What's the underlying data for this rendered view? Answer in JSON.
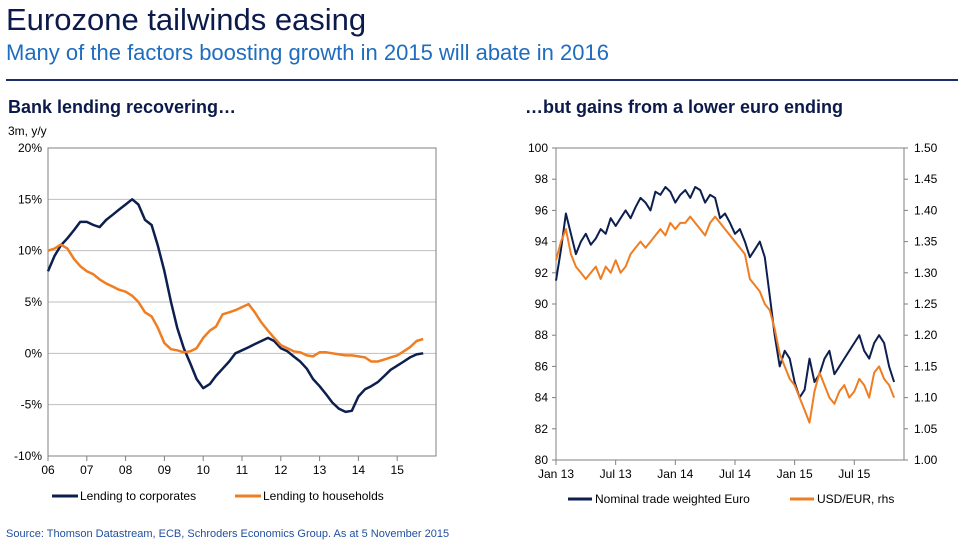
{
  "header": {
    "title": "Eurozone tailwinds easing",
    "subtitle": "Many of the factors boosting growth in 2015 will abate in 2016"
  },
  "footer": {
    "source": "Source: Thomson Datastream, ECB, Schroders Economics Group. As at 5 November 2015"
  },
  "colors": {
    "navy": "#0d1f4f",
    "orange": "#ef7d22",
    "grid": "#bfbfbf"
  },
  "chart_data": [
    {
      "type": "line",
      "title": "Bank lending recovering…",
      "unit_label": "3m, y/y",
      "ylim": [
        -10,
        20
      ],
      "yticks": [
        -10,
        -5,
        0,
        5,
        10,
        15,
        20
      ],
      "ytick_labels": [
        "-10%",
        "-5%",
        "0%",
        "5%",
        "10%",
        "15%",
        "20%"
      ],
      "xlim": [
        2006.0,
        2016.0
      ],
      "xticks": [
        2006,
        2007,
        2008,
        2009,
        2010,
        2011,
        2012,
        2013,
        2014,
        2015
      ],
      "xtick_labels": [
        "06",
        "07",
        "08",
        "09",
        "10",
        "11",
        "12",
        "13",
        "14",
        "15"
      ],
      "grid": true,
      "legend": "bottom",
      "series": [
        {
          "name": "Lending to corporates",
          "color": "#0d1f4f",
          "x": [
            2006.0,
            2006.17,
            2006.33,
            2006.5,
            2006.67,
            2006.83,
            2007.0,
            2007.17,
            2007.33,
            2007.5,
            2007.67,
            2007.83,
            2008.0,
            2008.17,
            2008.33,
            2008.5,
            2008.67,
            2008.83,
            2009.0,
            2009.17,
            2009.33,
            2009.5,
            2009.67,
            2009.83,
            2010.0,
            2010.17,
            2010.33,
            2010.5,
            2010.67,
            2010.83,
            2011.0,
            2011.17,
            2011.33,
            2011.5,
            2011.67,
            2011.83,
            2012.0,
            2012.17,
            2012.33,
            2012.5,
            2012.67,
            2012.83,
            2013.0,
            2013.17,
            2013.33,
            2013.5,
            2013.67,
            2013.83,
            2014.0,
            2014.17,
            2014.33,
            2014.5,
            2014.67,
            2014.83,
            2015.0,
            2015.17,
            2015.33,
            2015.5,
            2015.67
          ],
          "y": [
            8.0,
            9.5,
            10.5,
            11.2,
            12.0,
            12.8,
            12.8,
            12.5,
            12.3,
            13.0,
            13.5,
            14.0,
            14.5,
            15.0,
            14.5,
            13.0,
            12.5,
            10.5,
            8.0,
            5.0,
            2.5,
            0.5,
            -1.0,
            -2.5,
            -3.4,
            -3.0,
            -2.2,
            -1.5,
            -0.8,
            0.0,
            0.3,
            0.6,
            0.9,
            1.2,
            1.5,
            1.2,
            0.5,
            0.2,
            -0.3,
            -0.8,
            -1.5,
            -2.5,
            -3.2,
            -4.0,
            -4.8,
            -5.4,
            -5.7,
            -5.6,
            -4.2,
            -3.5,
            -3.2,
            -2.8,
            -2.2,
            -1.6,
            -1.2,
            -0.8,
            -0.4,
            -0.1,
            0.0
          ]
        },
        {
          "name": "Lending to households",
          "color": "#ef7d22",
          "x": [
            2006.0,
            2006.17,
            2006.33,
            2006.5,
            2006.67,
            2006.83,
            2007.0,
            2007.17,
            2007.33,
            2007.5,
            2007.67,
            2007.83,
            2008.0,
            2008.17,
            2008.33,
            2008.5,
            2008.67,
            2008.83,
            2009.0,
            2009.17,
            2009.33,
            2009.5,
            2009.67,
            2009.83,
            2010.0,
            2010.17,
            2010.33,
            2010.5,
            2010.67,
            2010.83,
            2011.0,
            2011.17,
            2011.33,
            2011.5,
            2011.67,
            2011.83,
            2012.0,
            2012.17,
            2012.33,
            2012.5,
            2012.67,
            2012.83,
            2013.0,
            2013.17,
            2013.33,
            2013.5,
            2013.67,
            2013.83,
            2014.0,
            2014.17,
            2014.33,
            2014.5,
            2014.67,
            2014.83,
            2015.0,
            2015.17,
            2015.33,
            2015.5,
            2015.67
          ],
          "y": [
            10.0,
            10.2,
            10.6,
            10.2,
            9.2,
            8.5,
            8.0,
            7.7,
            7.2,
            6.8,
            6.5,
            6.2,
            6.0,
            5.6,
            5.0,
            4.0,
            3.6,
            2.5,
            1.0,
            0.4,
            0.3,
            0.1,
            0.2,
            0.5,
            1.5,
            2.2,
            2.6,
            3.8,
            4.0,
            4.2,
            4.5,
            4.8,
            4.0,
            3.0,
            2.2,
            1.5,
            0.8,
            0.5,
            0.2,
            0.1,
            -0.2,
            -0.3,
            0.1,
            0.1,
            0.0,
            -0.1,
            -0.2,
            -0.2,
            -0.3,
            -0.4,
            -0.8,
            -0.8,
            -0.6,
            -0.4,
            -0.2,
            0.2,
            0.6,
            1.2,
            1.4
          ]
        }
      ]
    },
    {
      "type": "line",
      "title": "…but gains from a lower euro ending",
      "ylim": [
        80,
        100
      ],
      "yticks": [
        80,
        82,
        84,
        86,
        88,
        90,
        92,
        94,
        96,
        98,
        100
      ],
      "y2lim": [
        1.0,
        1.5
      ],
      "y2ticks": [
        1.0,
        1.05,
        1.1,
        1.15,
        1.2,
        1.25,
        1.3,
        1.35,
        1.4,
        1.45,
        1.5
      ],
      "y2tick_labels": [
        "1.00",
        "1.05",
        "1.10",
        "1.15",
        "1.20",
        "1.25",
        "1.30",
        "1.35",
        "1.40",
        "1.45",
        "1.50"
      ],
      "xlim": [
        0,
        35
      ],
      "xticks": [
        0,
        6,
        12,
        18,
        24,
        30
      ],
      "xtick_labels": [
        "Jan 13",
        "Jul 13",
        "Jan 14",
        "Jul 14",
        "Jan 15",
        "Jul 15"
      ],
      "grid": false,
      "legend": "bottom",
      "series": [
        {
          "name": "Nominal trade weighted Euro",
          "axis": "left",
          "color": "#0d1f4f",
          "x": [
            0,
            0.5,
            1,
            1.5,
            2,
            2.5,
            3,
            3.5,
            4,
            4.5,
            5,
            5.5,
            6,
            6.5,
            7,
            7.5,
            8,
            8.5,
            9,
            9.5,
            10,
            10.5,
            11,
            11.5,
            12,
            12.5,
            13,
            13.5,
            14,
            14.5,
            15,
            15.5,
            16,
            16.5,
            17,
            17.5,
            18,
            18.5,
            19,
            19.5,
            20,
            20.5,
            21,
            21.5,
            22,
            22.5,
            23,
            23.5,
            24,
            24.5,
            25,
            25.5,
            26,
            26.5,
            27,
            27.5,
            28,
            28.5,
            29,
            29.5,
            30,
            30.5,
            31,
            31.5,
            32,
            32.5,
            33,
            33.5,
            34
          ],
          "y": [
            91.5,
            93.5,
            95.8,
            94.5,
            93.2,
            94.0,
            94.5,
            93.8,
            94.2,
            94.8,
            94.5,
            95.5,
            95.0,
            95.5,
            96.0,
            95.5,
            96.2,
            96.8,
            96.5,
            96.0,
            97.2,
            97.0,
            97.5,
            97.2,
            96.5,
            97.0,
            97.3,
            96.8,
            97.5,
            97.3,
            96.5,
            97.0,
            96.8,
            95.5,
            95.8,
            95.2,
            94.5,
            94.8,
            94.0,
            93.0,
            93.5,
            94.0,
            93.0,
            90.5,
            88.0,
            86.0,
            87.0,
            86.5,
            85.0,
            84.0,
            84.5,
            86.5,
            85.0,
            85.5,
            86.5,
            87.0,
            85.5,
            86.0,
            86.5,
            87.0,
            87.5,
            88.0,
            87.0,
            86.5,
            87.5,
            88.0,
            87.5,
            86.0,
            85.0
          ]
        },
        {
          "name": "USD/EUR, rhs",
          "axis": "right",
          "color": "#ef7d22",
          "x": [
            0,
            0.5,
            1,
            1.5,
            2,
            2.5,
            3,
            3.5,
            4,
            4.5,
            5,
            5.5,
            6,
            6.5,
            7,
            7.5,
            8,
            8.5,
            9,
            9.5,
            10,
            10.5,
            11,
            11.5,
            12,
            12.5,
            13,
            13.5,
            14,
            14.5,
            15,
            15.5,
            16,
            16.5,
            17,
            17.5,
            18,
            18.5,
            19,
            19.5,
            20,
            20.5,
            21,
            21.5,
            22,
            22.5,
            23,
            23.5,
            24,
            24.5,
            25,
            25.5,
            26,
            26.5,
            27,
            27.5,
            28,
            28.5,
            29,
            29.5,
            30,
            30.5,
            31,
            31.5,
            32,
            32.5,
            33,
            33.5,
            34
          ],
          "y": [
            1.32,
            1.35,
            1.37,
            1.33,
            1.31,
            1.3,
            1.29,
            1.3,
            1.31,
            1.29,
            1.31,
            1.3,
            1.32,
            1.3,
            1.31,
            1.33,
            1.34,
            1.35,
            1.34,
            1.35,
            1.36,
            1.37,
            1.36,
            1.38,
            1.37,
            1.38,
            1.38,
            1.39,
            1.38,
            1.37,
            1.36,
            1.38,
            1.39,
            1.38,
            1.37,
            1.36,
            1.35,
            1.34,
            1.33,
            1.29,
            1.28,
            1.27,
            1.25,
            1.24,
            1.21,
            1.17,
            1.15,
            1.13,
            1.12,
            1.1,
            1.08,
            1.06,
            1.11,
            1.14,
            1.12,
            1.1,
            1.09,
            1.11,
            1.12,
            1.1,
            1.11,
            1.13,
            1.12,
            1.1,
            1.14,
            1.15,
            1.13,
            1.12,
            1.1
          ]
        }
      ]
    }
  ]
}
